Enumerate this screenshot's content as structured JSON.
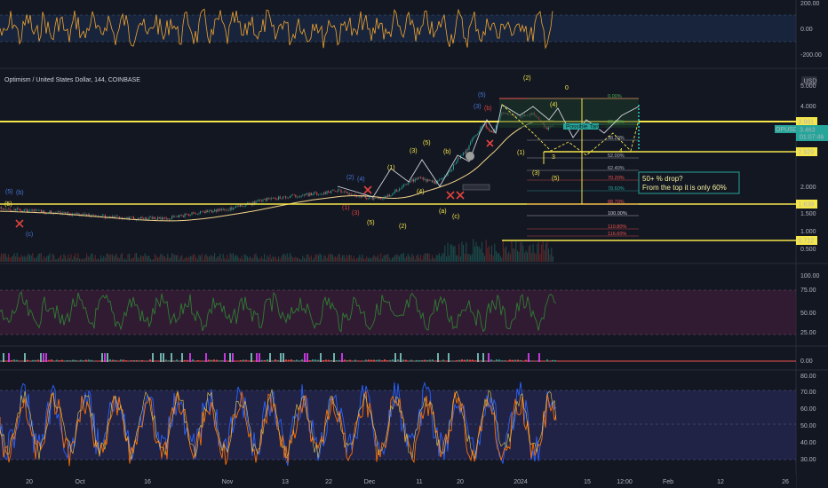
{
  "chart_data": [
    {
      "type": "line",
      "panel": "oscillator-top",
      "y_ticks": [
        "200.00",
        "0.00",
        "-200.00"
      ],
      "series": [],
      "color": "#f0a431"
    },
    {
      "type": "candlestick",
      "panel": "price",
      "symbol": "Optimism / United States Dollar, 144, COINBASE",
      "currency": "USD",
      "y_scale": "log",
      "ylim": [
        0.45,
        5.2
      ],
      "y_ticks": [
        "5.000",
        "4.000",
        "3.000",
        "2.000",
        "1.500",
        "1.000",
        "0.500"
      ],
      "x_ticks": [
        "20",
        "Oct",
        "16",
        "Nov",
        "13",
        "22",
        "Dec",
        "11",
        "20",
        "2024",
        "15",
        "12:00",
        "Feb",
        "12",
        "26"
      ],
      "last_price": {
        "symbol": "OPUSD",
        "price": "3.463",
        "countdown": "01:07:46"
      },
      "horizontal_levels": [
        {
          "label": "3.661",
          "value": 3.661,
          "color": "#f5e64a"
        },
        {
          "label": "2.929",
          "value": 2.929,
          "color": "#f5e64a"
        },
        {
          "label": "1.639",
          "value": 1.639,
          "color": "#f5e64a"
        },
        {
          "label": "0.712",
          "value": 0.712,
          "color": "#f5e64a"
        }
      ],
      "fib_levels": [
        {
          "label": "0.00%",
          "color": "#4caf50"
        },
        {
          "label": "23.60%",
          "color": "#4caf50"
        },
        {
          "label": "38.20%",
          "color": "#b2b5be"
        },
        {
          "label": "52.00%",
          "color": "#b2b5be"
        },
        {
          "label": "62.40%",
          "color": "#b2b5be"
        },
        {
          "label": "70.20%",
          "color": "#ef5350"
        },
        {
          "label": "78.60%",
          "color": "#26a69a"
        },
        {
          "label": "88.70%",
          "color": "#ef5350"
        },
        {
          "label": "100.00%",
          "color": "#d1d4dc"
        },
        {
          "label": "110.80%",
          "color": "#ef5350"
        },
        {
          "label": "116.60%",
          "color": "#ef5350"
        }
      ],
      "wave_labels": [
        {
          "text": "0",
          "color": "yellow"
        },
        {
          "text": "(2)",
          "color": "yellow"
        },
        {
          "text": "(5)",
          "color": "blue"
        },
        {
          "text": "(3)",
          "color": "blue"
        },
        {
          "text": "(b)",
          "color": "red"
        },
        {
          "text": "(4)",
          "color": "yellow"
        },
        {
          "text": "(5)",
          "color": "yellow"
        },
        {
          "text": "(3)",
          "color": "yellow"
        },
        {
          "text": "(b)",
          "color": "yellow"
        },
        {
          "text": "(1)",
          "color": "yellow"
        },
        {
          "text": "(1)",
          "color": "yellow"
        },
        {
          "text": "(3)",
          "color": "yellow"
        },
        {
          "text": "(5)",
          "color": "yellow"
        },
        {
          "text": "3",
          "color": "yellow"
        },
        {
          "text": "4",
          "color": "yellow"
        },
        {
          "text": "(4)",
          "color": "yellow"
        },
        {
          "text": "(2)",
          "color": "yellow"
        },
        {
          "text": "(a)",
          "color": "yellow"
        },
        {
          "text": "(c)",
          "color": "yellow"
        },
        {
          "text": "(5)",
          "color": "yellow"
        },
        {
          "text": "(5)",
          "color": "yellow"
        },
        {
          "text": "(b)",
          "color": "blue"
        },
        {
          "text": "(2)",
          "color": "blue"
        },
        {
          "text": "(4)",
          "color": "blue"
        },
        {
          "text": "(1)",
          "color": "red"
        },
        {
          "text": "(3)",
          "color": "red"
        },
        {
          "text": "(5)",
          "color": "blue"
        },
        {
          "text": "(c)",
          "color": "blue"
        }
      ],
      "annotations": [
        "50+ % drop?",
        "From the top it is only 60%"
      ],
      "badge": "Possible Target"
    },
    {
      "type": "line",
      "panel": "rsi",
      "y_ticks": [
        "100.00",
        "75.00",
        "50.00",
        "25.00"
      ],
      "series": [],
      "color": "#2e7d32"
    },
    {
      "type": "histogram",
      "panel": "momentum",
      "y_ticks": [
        "0.00"
      ],
      "series": []
    },
    {
      "type": "line",
      "panel": "stochastic",
      "y_ticks": [
        "80.00",
        "70.00",
        "60.00",
        "50.00",
        "40.00",
        "30.00"
      ],
      "series": []
    }
  ]
}
